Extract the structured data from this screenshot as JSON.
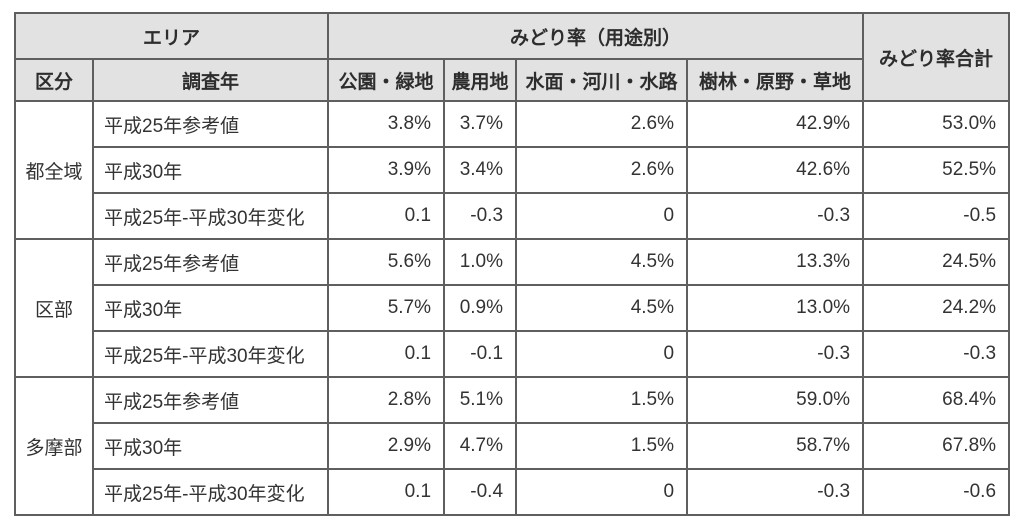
{
  "chart_data": {
    "type": "table",
    "title": "みどり率（用途別）",
    "columns": [
      "区分",
      "調査年",
      "公園・緑地",
      "農用地",
      "水面・河川・水路",
      "樹林・原野・草地",
      "みどり率合計"
    ],
    "rows": [
      [
        "都全域",
        "平成25年参考値",
        "3.8%",
        "3.7%",
        "2.6%",
        "42.9%",
        "53.0%"
      ],
      [
        "都全域",
        "平成30年",
        "3.9%",
        "3.4%",
        "2.6%",
        "42.6%",
        "52.5%"
      ],
      [
        "都全域",
        "平成25年-平成30年変化",
        "0.1",
        "-0.3",
        "0",
        "-0.3",
        "-0.5"
      ],
      [
        "区部",
        "平成25年参考値",
        "5.6%",
        "1.0%",
        "4.5%",
        "13.3%",
        "24.5%"
      ],
      [
        "区部",
        "平成30年",
        "5.7%",
        "0.9%",
        "4.5%",
        "13.0%",
        "24.2%"
      ],
      [
        "区部",
        "平成25年-平成30年変化",
        "0.1",
        "-0.1",
        "0",
        "-0.3",
        "-0.3"
      ],
      [
        "多摩部",
        "平成25年参考値",
        "2.8%",
        "5.1%",
        "1.5%",
        "59.0%",
        "68.4%"
      ],
      [
        "多摩部",
        "平成30年",
        "2.9%",
        "4.7%",
        "1.5%",
        "58.7%",
        "67.8%"
      ],
      [
        "多摩部",
        "平成25年-平成30年変化",
        "0.1",
        "-0.4",
        "0",
        "-0.3",
        "-0.6"
      ]
    ]
  },
  "table": {
    "header": {
      "area": "エリア",
      "usage_title": "みどり率（用途別）",
      "total_title": "みどり率合計",
      "kubun": "区分",
      "survey_year": "調査年",
      "columns": [
        "公園・緑地",
        "農用地",
        "水面・河川・水路",
        "樹林・原野・草地"
      ]
    },
    "groups": [
      {
        "area": "都全域",
        "rows": [
          {
            "label": "平成25年参考値",
            "values": [
              "3.8%",
              "3.7%",
              "2.6%",
              "42.9%",
              "53.0%"
            ]
          },
          {
            "label": "平成30年",
            "values": [
              "3.9%",
              "3.4%",
              "2.6%",
              "42.6%",
              "52.5%"
            ]
          },
          {
            "label": "平成25年-平成30年変化",
            "values": [
              "0.1",
              "-0.3",
              "0",
              "-0.3",
              "-0.5"
            ]
          }
        ]
      },
      {
        "area": "区部",
        "rows": [
          {
            "label": "平成25年参考値",
            "values": [
              "5.6%",
              "1.0%",
              "4.5%",
              "13.3%",
              "24.5%"
            ]
          },
          {
            "label": "平成30年",
            "values": [
              "5.7%",
              "0.9%",
              "4.5%",
              "13.0%",
              "24.2%"
            ]
          },
          {
            "label": "平成25年-平成30年変化",
            "values": [
              "0.1",
              "-0.1",
              "0",
              "-0.3",
              "-0.3"
            ]
          }
        ]
      },
      {
        "area": "多摩部",
        "rows": [
          {
            "label": "平成25年参考値",
            "values": [
              "2.8%",
              "5.1%",
              "1.5%",
              "59.0%",
              "68.4%"
            ]
          },
          {
            "label": "平成30年",
            "values": [
              "2.9%",
              "4.7%",
              "1.5%",
              "58.7%",
              "67.8%"
            ]
          },
          {
            "label": "平成25年-平成30年変化",
            "values": [
              "0.1",
              "-0.4",
              "0",
              "-0.3",
              "-0.6"
            ]
          }
        ]
      }
    ]
  },
  "colors": {
    "header_bg": "#e2e2e2",
    "border": "#5f5f5f",
    "text": "#333333",
    "page_bg": "#ffffff"
  }
}
